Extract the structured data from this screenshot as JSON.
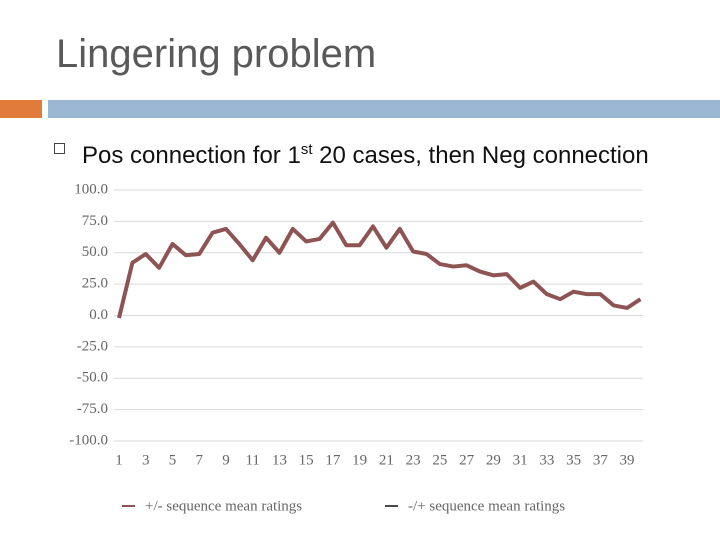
{
  "slide": {
    "title": "Lingering problem",
    "bullet": {
      "before": "Pos connection for 1",
      "superscript": "st",
      "after": " 20 cases, then Neg connection"
    }
  },
  "chart_data": {
    "type": "line",
    "categories": [
      1,
      null,
      3,
      null,
      5,
      null,
      7,
      null,
      9,
      null,
      11,
      null,
      13,
      null,
      15,
      null,
      17,
      null,
      19,
      null,
      21,
      null,
      23,
      null,
      25,
      null,
      27,
      null,
      29,
      null,
      31,
      null,
      33,
      null,
      35,
      null,
      37,
      null,
      39,
      null
    ],
    "series": [
      {
        "name": "+/- sequence mean ratings",
        "color": "#8e5454",
        "values": [
          -2,
          42,
          49,
          38,
          57,
          48,
          49,
          66,
          69,
          57,
          44,
          62,
          50,
          69,
          59,
          61,
          74,
          56,
          56,
          71,
          54,
          69,
          51,
          49,
          41,
          39,
          40,
          35,
          32,
          33,
          22,
          27,
          17,
          13,
          19,
          17,
          17,
          8,
          6,
          13
        ]
      },
      {
        "name": "-/+ sequence mean ratings",
        "color": "#4a4a4a",
        "values": [
          null,
          null,
          null,
          null,
          null,
          null,
          null,
          null,
          null,
          null,
          null,
          null,
          null,
          null,
          null,
          null,
          null,
          null,
          null,
          null,
          null,
          null,
          null,
          null,
          null,
          null,
          null,
          null,
          null,
          null,
          null,
          null,
          null,
          null,
          null,
          null,
          null,
          null,
          null,
          null
        ]
      }
    ],
    "ylim": [
      -100,
      100
    ],
    "yticks": [
      {
        "value": -100,
        "label": "-100.0"
      },
      {
        "value": -75,
        "label": "-75.0"
      },
      {
        "value": -50,
        "label": "-50.0"
      },
      {
        "value": -25,
        "label": "-25.0"
      },
      {
        "value": 0,
        "label": "0.0"
      },
      {
        "value": 25,
        "label": "25.0"
      },
      {
        "value": 50,
        "label": "50.0"
      },
      {
        "value": 75,
        "label": "75.0"
      },
      {
        "value": 100,
        "label": "100.0"
      }
    ],
    "grid": true
  }
}
